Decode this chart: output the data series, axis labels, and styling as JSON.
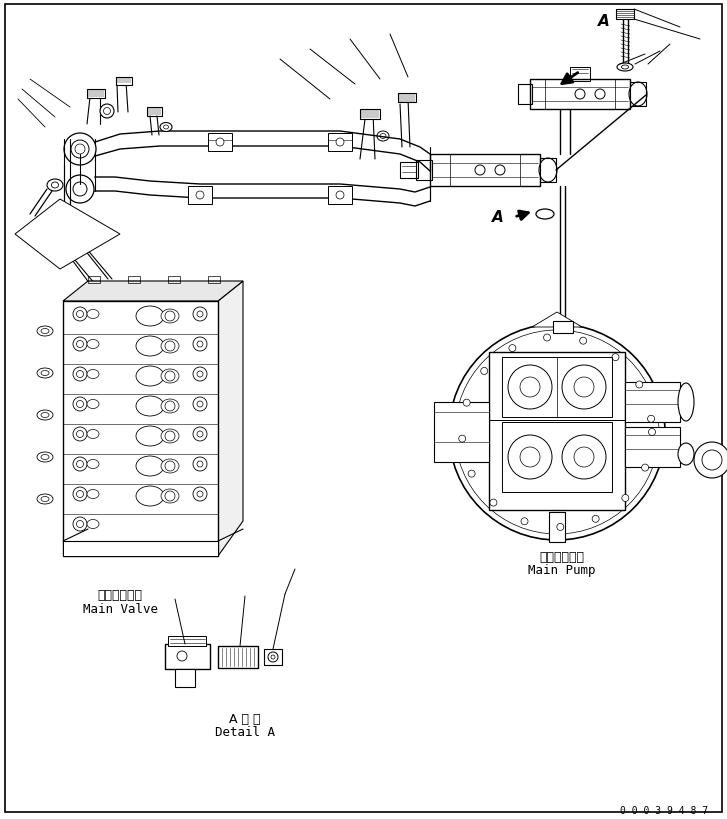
{
  "bg_color": "#ffffff",
  "line_color": "#000000",
  "label_main_valve_jp": "メインバルブ",
  "label_main_valve_en": "Main Valve",
  "label_main_pump_jp": "メインポンプ",
  "label_main_pump_en": "Main Pump",
  "label_detail_jp": "A 詳 細",
  "label_detail_en": "Detail A",
  "label_A": "A",
  "serial_number": "0 0 0 3 9 4 8 7",
  "font_size_label": 9,
  "font_size_serial": 7,
  "font_size_A": 11
}
